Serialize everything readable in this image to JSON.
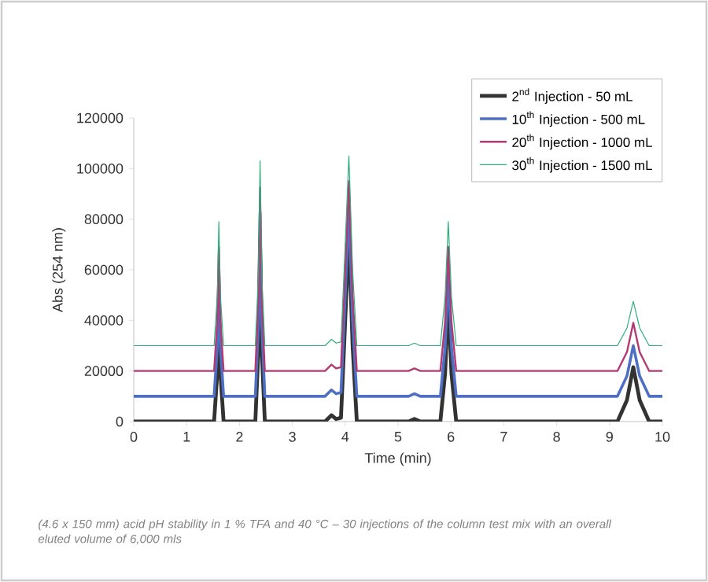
{
  "chart_data": {
    "type": "line",
    "xlabel": "Time (min)",
    "ylabel": "Abs (254 nm)",
    "x": [
      0,
      1.52,
      1.58,
      1.61,
      1.64,
      1.7,
      2.3,
      2.36,
      2.39,
      2.42,
      2.48,
      3.62,
      3.74,
      3.83,
      3.92,
      3.98,
      4.07,
      4.14,
      4.22,
      5.2,
      5.31,
      5.42,
      5.8,
      5.89,
      5.95,
      6.01,
      6.1,
      9.15,
      9.33,
      9.45,
      9.57,
      9.75,
      10
    ],
    "series": [
      {
        "name": "2$^{nd}$ Injection - 50 mL",
        "color": "#333333",
        "values": [
          0,
          0,
          19000,
          48500,
          19000,
          0,
          0,
          29000,
          72000,
          29000,
          0,
          0,
          2500,
          1000,
          1500,
          30000,
          74500,
          30000,
          0,
          0,
          1000,
          0,
          0,
          19000,
          48500,
          19000,
          0,
          0,
          8500,
          21500,
          8500,
          0,
          0
        ]
      },
      {
        "name": "10$^{th}$ Injection - 500 mL",
        "color": "#4f6fc4",
        "values": [
          10000,
          10000,
          29500,
          59000,
          29500,
          10000,
          10000,
          39000,
          82500,
          39000,
          10000,
          10000,
          12500,
          11000,
          11500,
          40000,
          84500,
          40000,
          10000,
          10000,
          11000,
          10000,
          10000,
          29500,
          59000,
          29500,
          10000,
          10000,
          18000,
          30000,
          18000,
          10000,
          10000
        ]
      },
      {
        "name": "20$^{th}$ Injection - 1000 mL",
        "color": "#b23a72",
        "values": [
          20000,
          20000,
          39500,
          69000,
          39500,
          20000,
          20000,
          49000,
          92500,
          49000,
          20000,
          20000,
          22500,
          21000,
          21500,
          50000,
          95000,
          50000,
          20000,
          20000,
          21000,
          20000,
          20000,
          39500,
          69000,
          39500,
          20000,
          20000,
          27500,
          39000,
          27500,
          20000,
          20000
        ]
      },
      {
        "name": "30$^{th}$ Injection - 1500 mL",
        "color": "#2fae7c",
        "values": [
          30000,
          30000,
          49500,
          79000,
          49500,
          30000,
          30000,
          59000,
          103000,
          59000,
          30000,
          30000,
          32500,
          31000,
          31500,
          60000,
          105000,
          60000,
          30000,
          30000,
          31000,
          30000,
          30000,
          49500,
          79000,
          49500,
          30000,
          30000,
          37000,
          47500,
          37000,
          30000,
          30000
        ]
      }
    ],
    "xlim": [
      0,
      10
    ],
    "xticks": [
      0,
      1,
      2,
      3,
      4,
      5,
      6,
      7,
      8,
      9,
      10
    ],
    "ylim": [
      0,
      120000
    ],
    "yticks": [
      0,
      20000,
      40000,
      60000,
      80000,
      100000,
      120000
    ],
    "legend": "top right",
    "grid": false,
    "annotations": [
      "(4.6 x 150 mm) acid pH stability in 1 % TFA and 40 °C – 30 injections of the column test mix with an overall eluted volume of 6,000 mls"
    ]
  }
}
